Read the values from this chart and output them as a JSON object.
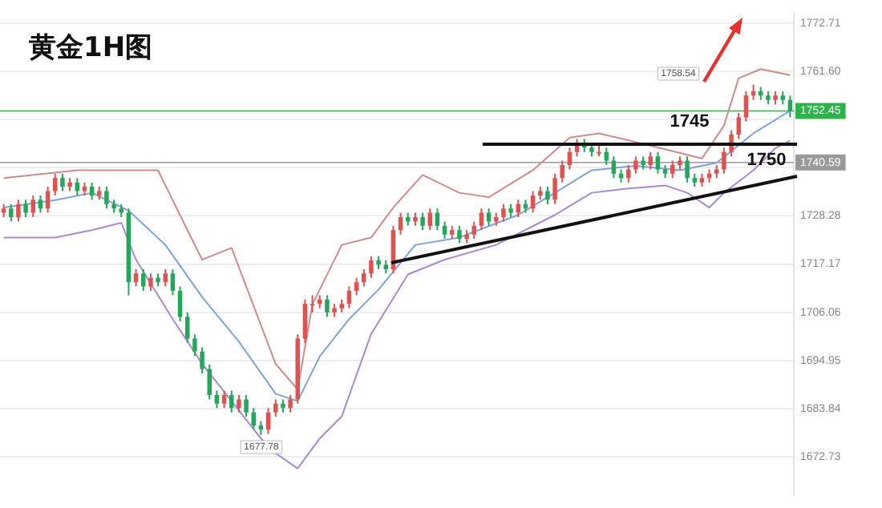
{
  "chart_data": {
    "type": "candlestick",
    "title": "黄金1H图",
    "categories": [
      null,
      null,
      null,
      null,
      null,
      null,
      null,
      null,
      null,
      null,
      null,
      null,
      null,
      null,
      null,
      null,
      null,
      null,
      null,
      null,
      null,
      null,
      null,
      null,
      null,
      null,
      null,
      null,
      null,
      null,
      null,
      null,
      null,
      null,
      null,
      null,
      null,
      null,
      null,
      null,
      null,
      null,
      null,
      null,
      null,
      null,
      null,
      null,
      null,
      null,
      null,
      null,
      null,
      null,
      null,
      null,
      null,
      null,
      null,
      null,
      null,
      null,
      null,
      null,
      null,
      null,
      null,
      null,
      null,
      null,
      null,
      null,
      null,
      null,
      null,
      null,
      null,
      null,
      null,
      null,
      null,
      null,
      null,
      null,
      null,
      null,
      null,
      null,
      null,
      null,
      null,
      null,
      null,
      null,
      null,
      null,
      null,
      null,
      null,
      null,
      null,
      null,
      null,
      null,
      null,
      null,
      null,
      null
    ],
    "ohlc": [
      [
        1729,
        1731,
        1728,
        1730
      ],
      [
        1730,
        1731,
        1727,
        1728
      ],
      [
        1728,
        1732,
        1727,
        1731
      ],
      [
        1731,
        1732,
        1728,
        1729
      ],
      [
        1729,
        1733,
        1728,
        1732
      ],
      [
        1732,
        1733,
        1729,
        1730
      ],
      [
        1730,
        1735,
        1729,
        1734
      ],
      [
        1734,
        1738,
        1733,
        1737
      ],
      [
        1737,
        1738,
        1734,
        1735
      ],
      [
        1735,
        1737,
        1734,
        1736
      ],
      [
        1736,
        1737,
        1733,
        1734
      ],
      [
        1734,
        1736,
        1733,
        1735
      ],
      [
        1735,
        1736,
        1732,
        1733
      ],
      [
        1733,
        1735,
        1732,
        1734
      ],
      [
        1734,
        1735,
        1730,
        1731
      ],
      [
        1731,
        1732,
        1729,
        1730
      ],
      [
        1730,
        1731,
        1728,
        1729
      ],
      [
        1729,
        1730,
        1710,
        1713
      ],
      [
        1713,
        1716,
        1712,
        1715
      ],
      [
        1715,
        1716,
        1711,
        1712
      ],
      [
        1712,
        1715,
        1711,
        1714
      ],
      [
        1714,
        1715,
        1712,
        1713
      ],
      [
        1713,
        1716,
        1712,
        1715
      ],
      [
        1715,
        1716,
        1710,
        1711
      ],
      [
        1711,
        1712,
        1704,
        1705
      ],
      [
        1705,
        1706,
        1699,
        1700
      ],
      [
        1700,
        1701,
        1696,
        1697
      ],
      [
        1697,
        1698,
        1692,
        1693
      ],
      [
        1693,
        1694,
        1686,
        1687
      ],
      [
        1687,
        1688,
        1684,
        1685
      ],
      [
        1685,
        1688,
        1684,
        1687
      ],
      [
        1687,
        1688,
        1683,
        1684
      ],
      [
        1684,
        1687,
        1683,
        1686
      ],
      [
        1686,
        1687,
        1682,
        1683
      ],
      [
        1683,
        1684,
        1679,
        1680
      ],
      [
        1680,
        1681,
        1677.78,
        1679
      ],
      [
        1679,
        1684,
        1678,
        1683
      ],
      [
        1683,
        1686,
        1682,
        1685
      ],
      [
        1685,
        1686,
        1683,
        1684
      ],
      [
        1684,
        1687,
        1683,
        1686
      ],
      [
        1686,
        1701,
        1685,
        1700
      ],
      [
        1700,
        1709,
        1699,
        1708
      ],
      [
        1708,
        1710,
        1706,
        1708
      ],
      [
        1708,
        1710,
        1707,
        1709
      ],
      [
        1709,
        1710,
        1705,
        1706
      ],
      [
        1706,
        1708,
        1705,
        1707
      ],
      [
        1707,
        1709,
        1706,
        1708
      ],
      [
        1708,
        1712,
        1707,
        1711
      ],
      [
        1711,
        1714,
        1710,
        1713
      ],
      [
        1713,
        1716,
        1712,
        1715
      ],
      [
        1715,
        1719,
        1714,
        1718
      ],
      [
        1718,
        1719,
        1716,
        1717
      ],
      [
        1717,
        1718,
        1715,
        1716
      ],
      [
        1716,
        1726,
        1715,
        1725
      ],
      [
        1725,
        1729,
        1724,
        1728
      ],
      [
        1728,
        1729,
        1726,
        1727
      ],
      [
        1727,
        1729,
        1726,
        1728
      ],
      [
        1728,
        1729,
        1725,
        1726
      ],
      [
        1726,
        1730,
        1725,
        1729
      ],
      [
        1729,
        1730,
        1725,
        1726
      ],
      [
        1726,
        1727,
        1723,
        1724
      ],
      [
        1724,
        1726,
        1723,
        1725
      ],
      [
        1725,
        1726,
        1722,
        1723
      ],
      [
        1723,
        1725,
        1722,
        1724
      ],
      [
        1724,
        1727,
        1723,
        1726
      ],
      [
        1726,
        1730,
        1725,
        1729
      ],
      [
        1729,
        1730,
        1726,
        1727
      ],
      [
        1727,
        1729,
        1726,
        1728
      ],
      [
        1728,
        1731,
        1727,
        1730
      ],
      [
        1730,
        1731,
        1728,
        1729
      ],
      [
        1729,
        1732,
        1728,
        1731
      ],
      [
        1731,
        1732,
        1729,
        1730
      ],
      [
        1730,
        1734,
        1729,
        1733
      ],
      [
        1733,
        1735,
        1732,
        1734
      ],
      [
        1734,
        1735,
        1731,
        1732
      ],
      [
        1732,
        1738,
        1731,
        1737
      ],
      [
        1737,
        1741,
        1736,
        1740
      ],
      [
        1740,
        1744,
        1739,
        1743
      ],
      [
        1743,
        1746,
        1742,
        1745
      ],
      [
        1745,
        1746,
        1743,
        1744
      ],
      [
        1744,
        1745,
        1742,
        1743
      ],
      [
        1743,
        1745,
        1742,
        1743
      ],
      [
        1743,
        1744,
        1740,
        1741
      ],
      [
        1741,
        1742,
        1737,
        1738
      ],
      [
        1738,
        1739,
        1736,
        1737
      ],
      [
        1737,
        1740,
        1736,
        1739
      ],
      [
        1739,
        1742,
        1738,
        1741
      ],
      [
        1741,
        1742,
        1739,
        1740
      ],
      [
        1740,
        1743,
        1739,
        1742
      ],
      [
        1742,
        1743,
        1738,
        1739
      ],
      [
        1739,
        1740,
        1737,
        1738
      ],
      [
        1738,
        1741,
        1737,
        1740
      ],
      [
        1740,
        1742,
        1739,
        1741
      ],
      [
        1741,
        1742,
        1736,
        1737
      ],
      [
        1737,
        1738,
        1735,
        1736
      ],
      [
        1736,
        1738,
        1735,
        1737
      ],
      [
        1737,
        1739,
        1736,
        1738
      ],
      [
        1738,
        1740,
        1737,
        1739
      ],
      [
        1739,
        1744,
        1738,
        1743
      ],
      [
        1743,
        1748,
        1742,
        1747
      ],
      [
        1747,
        1752,
        1746,
        1751
      ],
      [
        1751,
        1757,
        1750,
        1756
      ],
      [
        1756,
        1758.54,
        1755,
        1757
      ],
      [
        1757,
        1758,
        1755,
        1756
      ],
      [
        1756,
        1757,
        1754,
        1755
      ],
      [
        1755,
        1757,
        1754,
        1756
      ],
      [
        1756,
        1757,
        1754,
        1755
      ],
      [
        1755,
        1756,
        1751,
        1752.45
      ]
    ],
    "colors": [
      "#e0524f",
      "#26a65b",
      "#e0524f",
      "#26a65b",
      "#e0524f",
      "#26a65b",
      "#e0524f",
      "#e0524f",
      "#26a65b",
      "#e0524f",
      "#26a65b",
      "#e0524f",
      "#26a65b",
      "#e0524f",
      "#26a65b",
      "#26a65b",
      "#26a65b",
      "#26a65b",
      "#e0524f",
      "#26a65b",
      "#e0524f",
      "#26a65b",
      "#e0524f",
      "#26a65b",
      "#26a65b",
      "#26a65b",
      "#26a65b",
      "#26a65b",
      "#26a65b",
      "#26a65b",
      "#e0524f",
      "#26a65b",
      "#e0524f",
      "#26a65b",
      "#26a65b",
      "#26a65b",
      "#e0524f",
      "#e0524f",
      "#26a65b",
      "#e0524f",
      "#e0524f",
      "#e0524f",
      "#e0524f",
      "#e0524f",
      "#26a65b",
      "#e0524f",
      "#e0524f",
      "#e0524f",
      "#e0524f",
      "#e0524f",
      "#e0524f",
      "#26a65b",
      "#26a65b",
      "#e0524f",
      "#e0524f",
      "#26a65b",
      "#e0524f",
      "#26a65b",
      "#e0524f",
      "#26a65b",
      "#26a65b",
      "#e0524f",
      "#26a65b",
      "#e0524f",
      "#e0524f",
      "#e0524f",
      "#26a65b",
      "#e0524f",
      "#e0524f",
      "#26a65b",
      "#e0524f",
      "#26a65b",
      "#e0524f",
      "#e0524f",
      "#26a65b",
      "#e0524f",
      "#e0524f",
      "#e0524f",
      "#e0524f",
      "#26a65b",
      "#26a65b",
      "#e0524f",
      "#26a65b",
      "#26a65b",
      "#26a65b",
      "#e0524f",
      "#e0524f",
      "#26a65b",
      "#e0524f",
      "#26a65b",
      "#26a65b",
      "#e0524f",
      "#e0524f",
      "#26a65b",
      "#26a65b",
      "#e0524f",
      "#e0524f",
      "#e0524f",
      "#e0524f",
      "#e0524f",
      "#e0524f",
      "#e0524f",
      "#e0524f",
      "#26a65b",
      "#26a65b",
      "#e0524f",
      "#26a65b",
      "#26a65b"
    ],
    "series": [
      {
        "type": "line",
        "color": "#d08c8c",
        "values": [
          1737.0,
          null,
          null,
          null,
          null,
          null,
          null,
          null,
          null,
          null,
          1738.8,
          null,
          null,
          null,
          null,
          null,
          null,
          1738.8,
          null,
          null,
          null,
          1738.8,
          null,
          null,
          null,
          1725.0,
          null,
          1718.2,
          null,
          null,
          null,
          1720.9,
          null,
          null,
          null,
          null,
          null,
          1694.2,
          null,
          null,
          1688.3,
          null,
          1707.9,
          null,
          null,
          null,
          1721.6,
          null,
          null,
          null,
          1723.3,
          null,
          null,
          1730.2,
          null,
          null,
          null,
          1737.7,
          null,
          null,
          null,
          null,
          1733.6,
          null,
          null,
          null,
          1732.6,
          null,
          null,
          null,
          null,
          null,
          1738.8,
          null,
          null,
          null,
          null,
          1746.3,
          null,
          null,
          null,
          1747.3,
          null,
          null,
          null,
          null,
          null,
          1744.9,
          null,
          null,
          null,
          null,
          null,
          null,
          null,
          1741.5,
          null,
          null,
          1749.1,
          null,
          1760.0,
          null,
          null,
          1762.1,
          null,
          null,
          null,
          1760.7
        ]
      },
      {
        "type": "line",
        "color": "#7fa3d8",
        "values": [
          1730.2,
          null,
          null,
          null,
          null,
          null,
          null,
          1731.9,
          null,
          null,
          null,
          null,
          1733.6,
          null,
          null,
          null,
          null,
          1729.5,
          null,
          null,
          null,
          null,
          1721.6,
          null,
          null,
          null,
          null,
          1709.6,
          null,
          null,
          null,
          null,
          1699.3,
          null,
          null,
          null,
          null,
          1687.3,
          null,
          null,
          1685.6,
          null,
          null,
          1695.9,
          null,
          null,
          null,
          1704.5,
          null,
          null,
          null,
          1711.3,
          null,
          null,
          null,
          null,
          1721.6,
          null,
          null,
          null,
          null,
          null,
          1723.3,
          null,
          null,
          null,
          null,
          null,
          null,
          null,
          1728.5,
          null,
          null,
          null,
          null,
          1733.6,
          null,
          null,
          null,
          null,
          1738.8,
          null,
          null,
          null,
          null,
          null,
          1739.8,
          null,
          null,
          null,
          null,
          null,
          1738.8,
          null,
          null,
          null,
          null,
          1740.5,
          null,
          null,
          null,
          null,
          1747.3,
          null,
          null,
          null,
          null,
          1752.5
        ]
      },
      {
        "type": "line",
        "color": "#a88ad2",
        "values": [
          1723.3,
          null,
          null,
          null,
          null,
          null,
          null,
          1723.3,
          null,
          null,
          null,
          null,
          1725.0,
          null,
          null,
          null,
          1726.7,
          null,
          1718.2,
          null,
          null,
          null,
          null,
          1704.5,
          null,
          null,
          null,
          1694.2,
          null,
          null,
          null,
          1685.6,
          null,
          null,
          null,
          1677.0,
          null,
          1673.6,
          null,
          null,
          1670.1,
          null,
          null,
          1677.0,
          null,
          null,
          1682.1,
          null,
          null,
          null,
          1701.1,
          null,
          null,
          null,
          null,
          1714.8,
          null,
          null,
          null,
          null,
          1718.2,
          null,
          null,
          null,
          null,
          null,
          null,
          1721.6,
          null,
          null,
          null,
          null,
          null,
          null,
          null,
          1728.5,
          null,
          null,
          null,
          null,
          1733.6,
          null,
          null,
          null,
          null,
          1734.6,
          null,
          null,
          null,
          null,
          1735.3,
          null,
          null,
          1733.6,
          null,
          null,
          1730.2,
          null,
          1733.6,
          null,
          null,
          null,
          1738.8,
          null,
          null,
          1743.9,
          null,
          1745.6
        ]
      }
    ],
    "ref_lines": [
      {
        "axis": "y",
        "value": 1752.45,
        "label": "1752.45",
        "color": "#2db34a"
      },
      {
        "axis": "y",
        "value": 1740.59,
        "label": "1740.59",
        "color": "#9a9a9a"
      }
    ],
    "annotations": [
      "1758.54",
      "1677.78",
      "1745",
      "1750"
    ],
    "ylim": [
      1664,
      1775
    ],
    "yticks": [
      1772.71,
      {
        "value": 1761.6,
        "label": "1761.60"
      },
      {
        "value": 1750.5,
        "label": null
      },
      {
        "value": 1739.39,
        "label": null
      },
      1728.28,
      1717.17,
      1706.06,
      1694.95,
      1683.84,
      1672.73
    ],
    "grid": "y",
    "tick_labels": "y",
    "legend": false
  }
}
